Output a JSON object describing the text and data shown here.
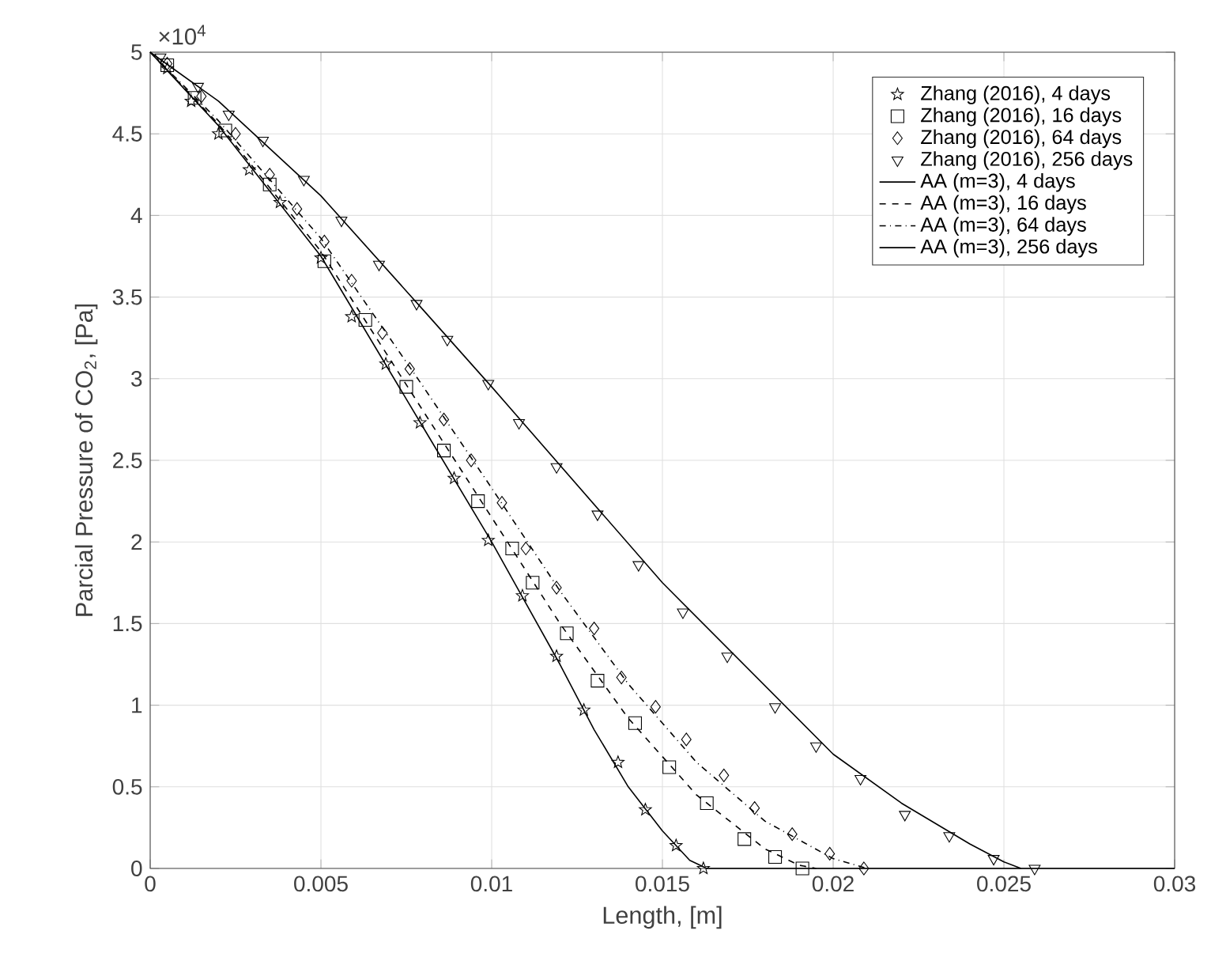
{
  "chart_data": {
    "type": "line",
    "xlabel": "Length, [m]",
    "ylabel": "Parcial Pressure of CO$_{2}$, [Pa]",
    "xlim": [
      0,
      0.03
    ],
    "ylim": [
      0,
      5
    ],
    "xticks": [
      0,
      0.005,
      0.01,
      0.015,
      0.02,
      0.025,
      0.03
    ],
    "yticks": [
      0,
      0.5,
      1,
      1.5,
      2,
      2.5,
      3,
      3.5,
      4,
      4.5,
      5
    ],
    "annotations": [
      "×10$^{4}$"
    ],
    "grid": true,
    "legend": "top right",
    "series": [
      {
        "name": "Zhang (2016), 4 days",
        "type": "scatter",
        "marker": "star",
        "color": "#000000",
        "x": [
          0.0005,
          0.0012,
          0.002,
          0.0029,
          0.0038,
          0.005,
          0.0059,
          0.0069,
          0.0079,
          0.0089,
          0.0099,
          0.0109,
          0.0119,
          0.0127,
          0.0137,
          0.0145,
          0.0154,
          0.0162
        ],
        "values": [
          4.9,
          4.7,
          4.5,
          4.28,
          4.08,
          3.74,
          3.38,
          3.09,
          2.73,
          2.39,
          2.01,
          1.67,
          1.3,
          0.97,
          0.65,
          0.36,
          0.14,
          0
        ]
      },
      {
        "name": "Zhang (2016), 16 days",
        "type": "scatter",
        "marker": "square",
        "color": "#000000",
        "x": [
          0.0005,
          0.0013,
          0.0022,
          0.0035,
          0.0051,
          0.0063,
          0.0075,
          0.0086,
          0.0096,
          0.0106,
          0.0112,
          0.0122,
          0.0131,
          0.0142,
          0.0152,
          0.0163,
          0.0174,
          0.0183,
          0.0191
        ],
        "values": [
          4.92,
          4.72,
          4.52,
          4.19,
          3.72,
          3.36,
          2.95,
          2.56,
          2.25,
          1.96,
          1.75,
          1.44,
          1.15,
          0.89,
          0.62,
          0.4,
          0.18,
          0.07,
          0
        ]
      },
      {
        "name": "Zhang (2016), 64 days",
        "type": "scatter",
        "marker": "diamond",
        "color": "#000000",
        "x": [
          0.0005,
          0.0015,
          0.0025,
          0.0035,
          0.0043,
          0.0051,
          0.0059,
          0.0068,
          0.0076,
          0.0086,
          0.0094,
          0.0103,
          0.011,
          0.0119,
          0.013,
          0.0138,
          0.0148,
          0.0157,
          0.0168,
          0.0177,
          0.0188,
          0.0199,
          0.0209
        ],
        "values": [
          4.93,
          4.73,
          4.5,
          4.25,
          4.04,
          3.84,
          3.6,
          3.28,
          3.06,
          2.75,
          2.5,
          2.24,
          1.96,
          1.72,
          1.47,
          1.17,
          0.99,
          0.79,
          0.57,
          0.37,
          0.21,
          0.09,
          0
        ]
      },
      {
        "name": "Zhang (2016), 256 days",
        "type": "scatter",
        "marker": "triangle",
        "color": "#000000",
        "x": [
          0.0003,
          0.0014,
          0.0023,
          0.0033,
          0.0045,
          0.0056,
          0.0067,
          0.0078,
          0.0087,
          0.0099,
          0.0108,
          0.0119,
          0.0131,
          0.0143,
          0.0156,
          0.0169,
          0.0183,
          0.0195,
          0.0208,
          0.0221,
          0.0234,
          0.0247,
          0.0259
        ],
        "values": [
          4.97,
          4.79,
          4.62,
          4.46,
          4.22,
          3.97,
          3.7,
          3.46,
          3.24,
          2.97,
          2.73,
          2.46,
          2.17,
          1.86,
          1.57,
          1.3,
          0.99,
          0.75,
          0.55,
          0.33,
          0.2,
          0.06,
          0
        ]
      },
      {
        "name": "AA (m=3), 4 days",
        "line_style": "solid",
        "color": "#000000",
        "x": [
          0,
          0.002,
          0.005,
          0.008,
          0.01,
          0.012,
          0.013,
          0.014,
          0.015,
          0.0158,
          0.0163,
          0.03
        ],
        "values": [
          5,
          4.55,
          3.75,
          2.7,
          2,
          1.25,
          0.85,
          0.5,
          0.23,
          0.05,
          0,
          0
        ]
      },
      {
        "name": "AA (m=3), 16 days",
        "line_style": "dashed",
        "color": "#000000",
        "x": [
          0,
          0.002,
          0.005,
          0.008,
          0.01,
          0.012,
          0.014,
          0.016,
          0.018,
          0.019,
          0.0195
        ],
        "values": [
          5,
          4.56,
          3.78,
          2.8,
          2.15,
          1.5,
          0.92,
          0.45,
          0.12,
          0.02,
          0
        ]
      },
      {
        "name": "AA (m=3), 64 days",
        "line_style": "dashdot",
        "color": "#000000",
        "x": [
          0,
          0.002,
          0.005,
          0.008,
          0.01,
          0.012,
          0.014,
          0.016,
          0.018,
          0.02,
          0.021
        ],
        "values": [
          5,
          4.58,
          3.86,
          2.95,
          2.33,
          1.7,
          1.13,
          0.65,
          0.29,
          0.06,
          0
        ]
      },
      {
        "name": "AA (m=3), 256 days",
        "line_style": "solid",
        "color": "#000000",
        "x": [
          0,
          0.002,
          0.005,
          0.008,
          0.01,
          0.015,
          0.02,
          0.022,
          0.024,
          0.025,
          0.0255
        ],
        "values": [
          5,
          4.7,
          4.12,
          3.42,
          2.95,
          1.75,
          0.7,
          0.4,
          0.15,
          0.04,
          0
        ]
      }
    ]
  }
}
